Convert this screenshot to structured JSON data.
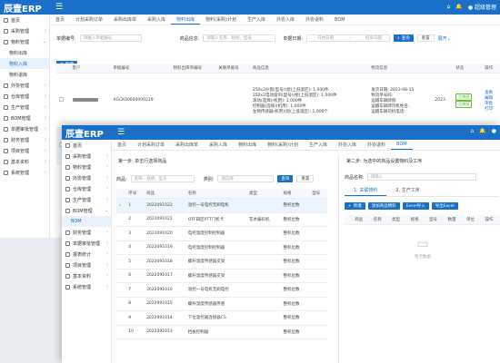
{
  "back": {
    "logo": "辰壹ERP",
    "user": "超级管理",
    "menu": [
      {
        "label": "首页",
        "arrow": ""
      },
      {
        "label": "采购管理",
        "arrow": "›"
      },
      {
        "label": "物料管理",
        "arrow": "⌄"
      },
      {
        "label": "物料出库",
        "arrow": "",
        "sub": true
      },
      {
        "label": "物料入库",
        "arrow": "",
        "sub": true,
        "active": true
      },
      {
        "label": "物料退库",
        "arrow": "",
        "sub": true
      },
      {
        "label": "外协管理",
        "arrow": "›"
      },
      {
        "label": "仓库管理",
        "arrow": "›"
      },
      {
        "label": "生产管理",
        "arrow": "›"
      },
      {
        "label": "BOM管理",
        "arrow": "›"
      },
      {
        "label": "单据审批管理",
        "arrow": "›"
      },
      {
        "label": "财务管理",
        "arrow": "›"
      },
      {
        "label": "项目管理",
        "arrow": "›"
      },
      {
        "label": "基本资料",
        "arrow": "›"
      },
      {
        "label": "系统管理",
        "arrow": "›"
      }
    ],
    "tabs": [
      "首页",
      "计划采购订单",
      "采购出库单",
      "采购入库",
      "物料出库",
      "物料(采购)计划",
      "生产入库",
      "外协入库",
      "外协退料",
      "BOM"
    ],
    "active_tab": 4,
    "filter": {
      "l1": "单据编号:",
      "p1": "请输入单据编号",
      "l2": "商品信息:",
      "p2": "请输入名称、规格、型号",
      "l3": "单据日期:",
      "p3": "开始日期",
      "sep": "-",
      "p4": "结束日期",
      "search": "查询",
      "reset": "重置",
      "expand": "展开"
    },
    "add": "新增",
    "headers": [
      "",
      "客户",
      "单据编号",
      "物料出库单编号",
      "关联单据号",
      "商品信息",
      "物流信息",
      "",
      "状态",
      "操作"
    ],
    "row": {
      "doc": "XGCK00000000219",
      "goods": [
        "250x2纱窗(型号)(组(上低温区): 1,000件",
        "250x2电动窗帘(型号)(组(上低温区): 1,000件",
        "滚动(选择)(机用): 1,000件",
        "控制器(选择)(机用): 1,000件",
        "左侧传感器(机用)(组(上低温区): 1,000个"
      ],
      "logi": [
        "发货日期: 2023-08-15",
        "物流单号码:",
        "运输车辆牌照:",
        "运输车辆牌司机姓名:",
        "运输车辆司机电话:"
      ],
      "logi2": [
        "发货日期: 2023-08-14",
        "物流单号码:"
      ],
      "yr": "2023",
      "status": [
        "已审核",
        "已审核"
      ],
      "ops": [
        "查看",
        "编辑",
        "审批",
        "打印"
      ]
    }
  },
  "front": {
    "logo": "辰壹ERP",
    "menu": [
      {
        "label": "首页",
        "arrow": ""
      },
      {
        "label": "采购管理",
        "arrow": "›"
      },
      {
        "label": "物料管理",
        "arrow": "›"
      },
      {
        "label": "外协管理",
        "arrow": "›"
      },
      {
        "label": "仓库管理",
        "arrow": "›"
      },
      {
        "label": "生产管理",
        "arrow": "›"
      },
      {
        "label": "BOM管理",
        "arrow": "⌄"
      },
      {
        "label": "BOM",
        "arrow": "",
        "sub": true,
        "active": true
      },
      {
        "label": "财务管理",
        "arrow": "›"
      },
      {
        "label": "单据审批管理",
        "arrow": "›"
      },
      {
        "label": "报表统计",
        "arrow": "›"
      },
      {
        "label": "项目管理",
        "arrow": "›"
      },
      {
        "label": "基本资料",
        "arrow": "›"
      },
      {
        "label": "系统管理",
        "arrow": "›"
      }
    ],
    "tabs": [
      "首页",
      "计划采购订单",
      "采购出库单",
      "采购入库",
      "物料出库",
      "物料(采购)计划",
      "生产入库",
      "外协入库",
      "外协退料",
      "BOM"
    ],
    "active_tab": 9,
    "step1": "第一步: 单击行选择商品",
    "q1l": "商品:",
    "q1p": "名称、规格、型号",
    "q2l": "类别:",
    "q2p": "请选择",
    "search": "查询",
    "reset": "重置",
    "cols": [
      "",
      "序号",
      "商品",
      "名称",
      "类型",
      "规格",
      "型号"
    ],
    "rows": [
      [
        "1",
        "2022091022",
        "温控一号电控无刷电机",
        ""
      ],
      [
        "2",
        "2022091021",
        "OTF四区PTT门机卡",
        "花木编码机"
      ],
      [
        "3",
        "2022091020",
        "电控温度控制控制器",
        ""
      ],
      [
        "4",
        "2022091019",
        "电控温度控制控制器",
        ""
      ],
      [
        "5",
        "2022091018",
        "螺杆温度传感器支架",
        ""
      ],
      [
        "6",
        "2022091017",
        "螺杆温度传感器支架",
        ""
      ],
      [
        "7",
        "2022091016",
        "温控一号电机无刷电控",
        ""
      ],
      [
        "8",
        "2022091015",
        "螺杆温度传感器传感",
        ""
      ],
      [
        "9",
        "2022091014",
        "下位温控器连接器CS",
        ""
      ],
      [
        "10",
        "2022091013",
        "挡板控制器",
        ""
      ]
    ],
    "rowtype": "整机位数",
    "step2": "第二步: 为选中的商品设置物料及工序",
    "q3l": "商品名称:",
    "q3p": "请输入",
    "sub_tabs": [
      "1. 关联物料",
      "2. 生产工序"
    ],
    "btns": [
      "新增",
      "添加商品物料",
      "Excel导入",
      "导出Excel"
    ],
    "cols2": [
      "",
      "商品",
      "名称",
      "类型",
      "规格",
      "型号",
      "数量",
      "单位",
      "操作"
    ],
    "empty": "暂无数据"
  }
}
